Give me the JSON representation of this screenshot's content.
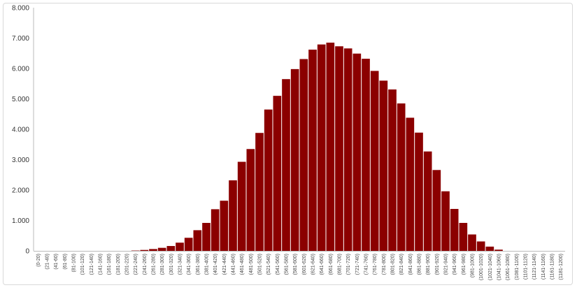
{
  "chart_data": {
    "type": "bar",
    "title": "",
    "xlabel": "",
    "ylabel": "",
    "ylim": [
      0,
      8000
    ],
    "yticks": [
      "0",
      "1.000",
      "2.000",
      "3.000",
      "4.000",
      "5.000",
      "6.000",
      "7.000",
      "8.000"
    ],
    "ytick_values": [
      0,
      1000,
      2000,
      3000,
      4000,
      5000,
      6000,
      7000,
      8000
    ],
    "grid": false,
    "legend": "none",
    "bar_color": "#8b0000",
    "categories": [
      "(0-20)",
      "(21-40)",
      "(41-60)",
      "(61-80)",
      "(81-100)",
      "(101-120)",
      "(121-140)",
      "(141-160)",
      "(161-180)",
      "(181-200)",
      "(201-220)",
      "(221-240)",
      "(241-260)",
      "(261-280)",
      "(281-300)",
      "(301-320)",
      "(321-340)",
      "(341-360)",
      "(361-380)",
      "(381-400)",
      "(401-420)",
      "(421-440)",
      "(441-460)",
      "(461-480)",
      "(481-500)",
      "(501-520)",
      "(521-540)",
      "(541-560)",
      "(561-580)",
      "(581-600)",
      "(601-620)",
      "(621-640)",
      "(641-660)",
      "(661-680)",
      "(681-700)",
      "(701-720)",
      "(721-740)",
      "(741-760)",
      "(761-780)",
      "(781-800)",
      "(801-820)",
      "(821-840)",
      "(841-860)",
      "(861-880)",
      "(881-900)",
      "(901-920)",
      "(921-940)",
      "(941-960)",
      "(961-980)",
      "(981-1000)",
      "(1001-1020)",
      "(1021-1040)",
      "(1041-1060)",
      "(1061-1080)",
      "(1081-1100)",
      "(1101-1120)",
      "(1121-1140)",
      "(1141-1160)",
      "(1161-1180)",
      "(1181-1200)"
    ],
    "values": [
      0,
      0,
      0,
      0,
      0,
      0,
      0,
      0,
      0,
      0,
      0,
      10,
      30,
      60,
      100,
      160,
      270,
      430,
      680,
      920,
      1370,
      1650,
      2320,
      2930,
      3350,
      3880,
      4650,
      5100,
      5650,
      5980,
      6310,
      6620,
      6790,
      6850,
      6730,
      6660,
      6490,
      6320,
      5920,
      5600,
      5310,
      4850,
      4380,
      3890,
      3270,
      2660,
      1960,
      1380,
      920,
      540,
      310,
      140,
      40,
      0,
      0,
      0,
      0,
      0,
      0,
      0
    ]
  }
}
